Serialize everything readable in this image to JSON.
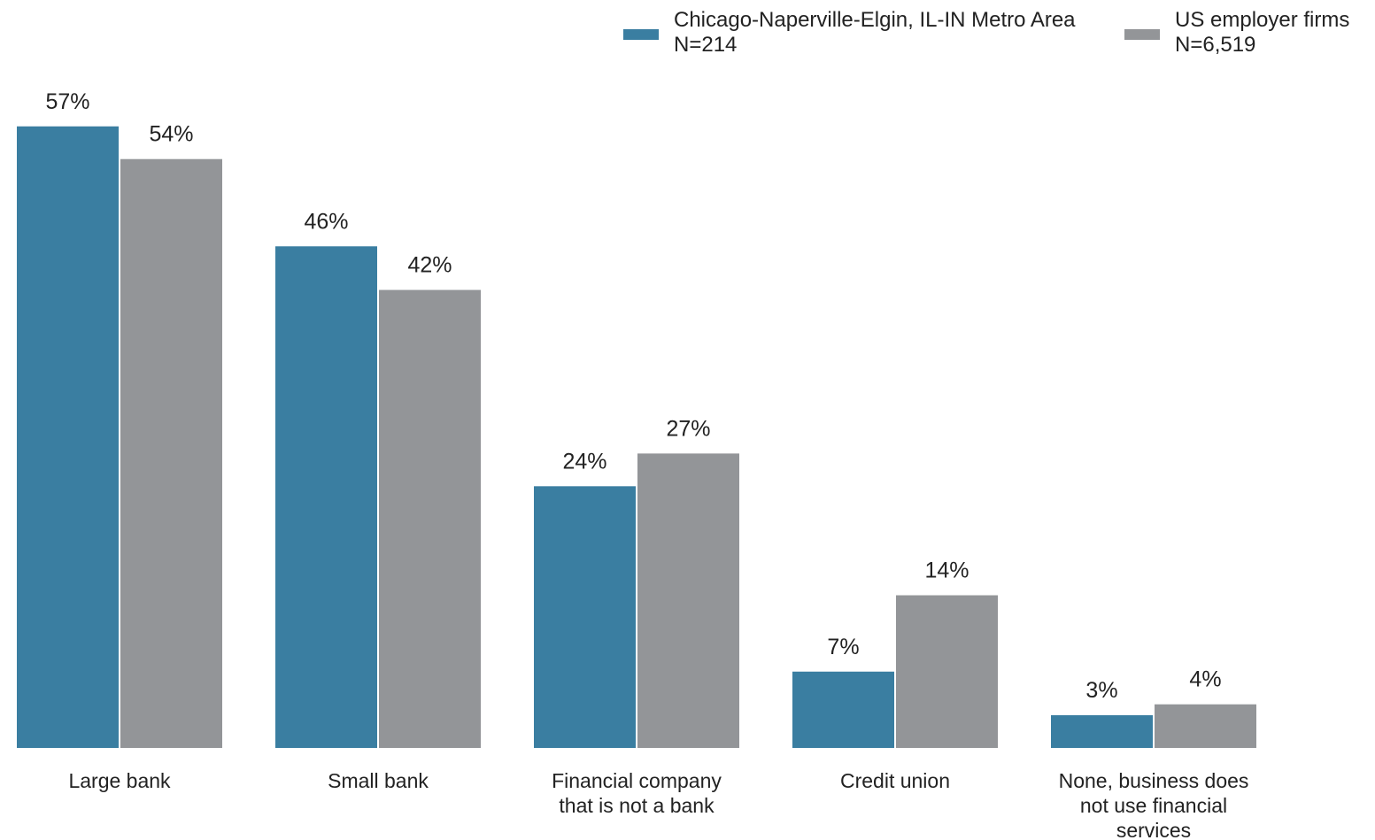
{
  "chart_data": {
    "type": "bar",
    "title": "",
    "xlabel": "",
    "ylabel": "",
    "ylim": [
      0,
      60
    ],
    "grid": false,
    "legend_placement": "top-right",
    "categories": [
      [
        "Large bank"
      ],
      [
        "Small bank"
      ],
      [
        "Financial company",
        "that is not a bank"
      ],
      [
        "Credit union"
      ],
      [
        "None, business does",
        "not use financial",
        "services"
      ]
    ],
    "series": [
      {
        "name": "Chicago-Naperville-Elgin, IL-IN Metro Area",
        "n_label": "N=214",
        "color": "#3a7ea1",
        "values": [
          57,
          46,
          24,
          7,
          3
        ],
        "labels": [
          "57%",
          "46%",
          "24%",
          "7%",
          "3%"
        ]
      },
      {
        "name": "US employer firms",
        "n_label": "N=6,519",
        "color": "#939598",
        "values": [
          54,
          42,
          27,
          14,
          4
        ],
        "labels": [
          "54%",
          "42%",
          "27%",
          "14%",
          "4%"
        ]
      }
    ]
  }
}
